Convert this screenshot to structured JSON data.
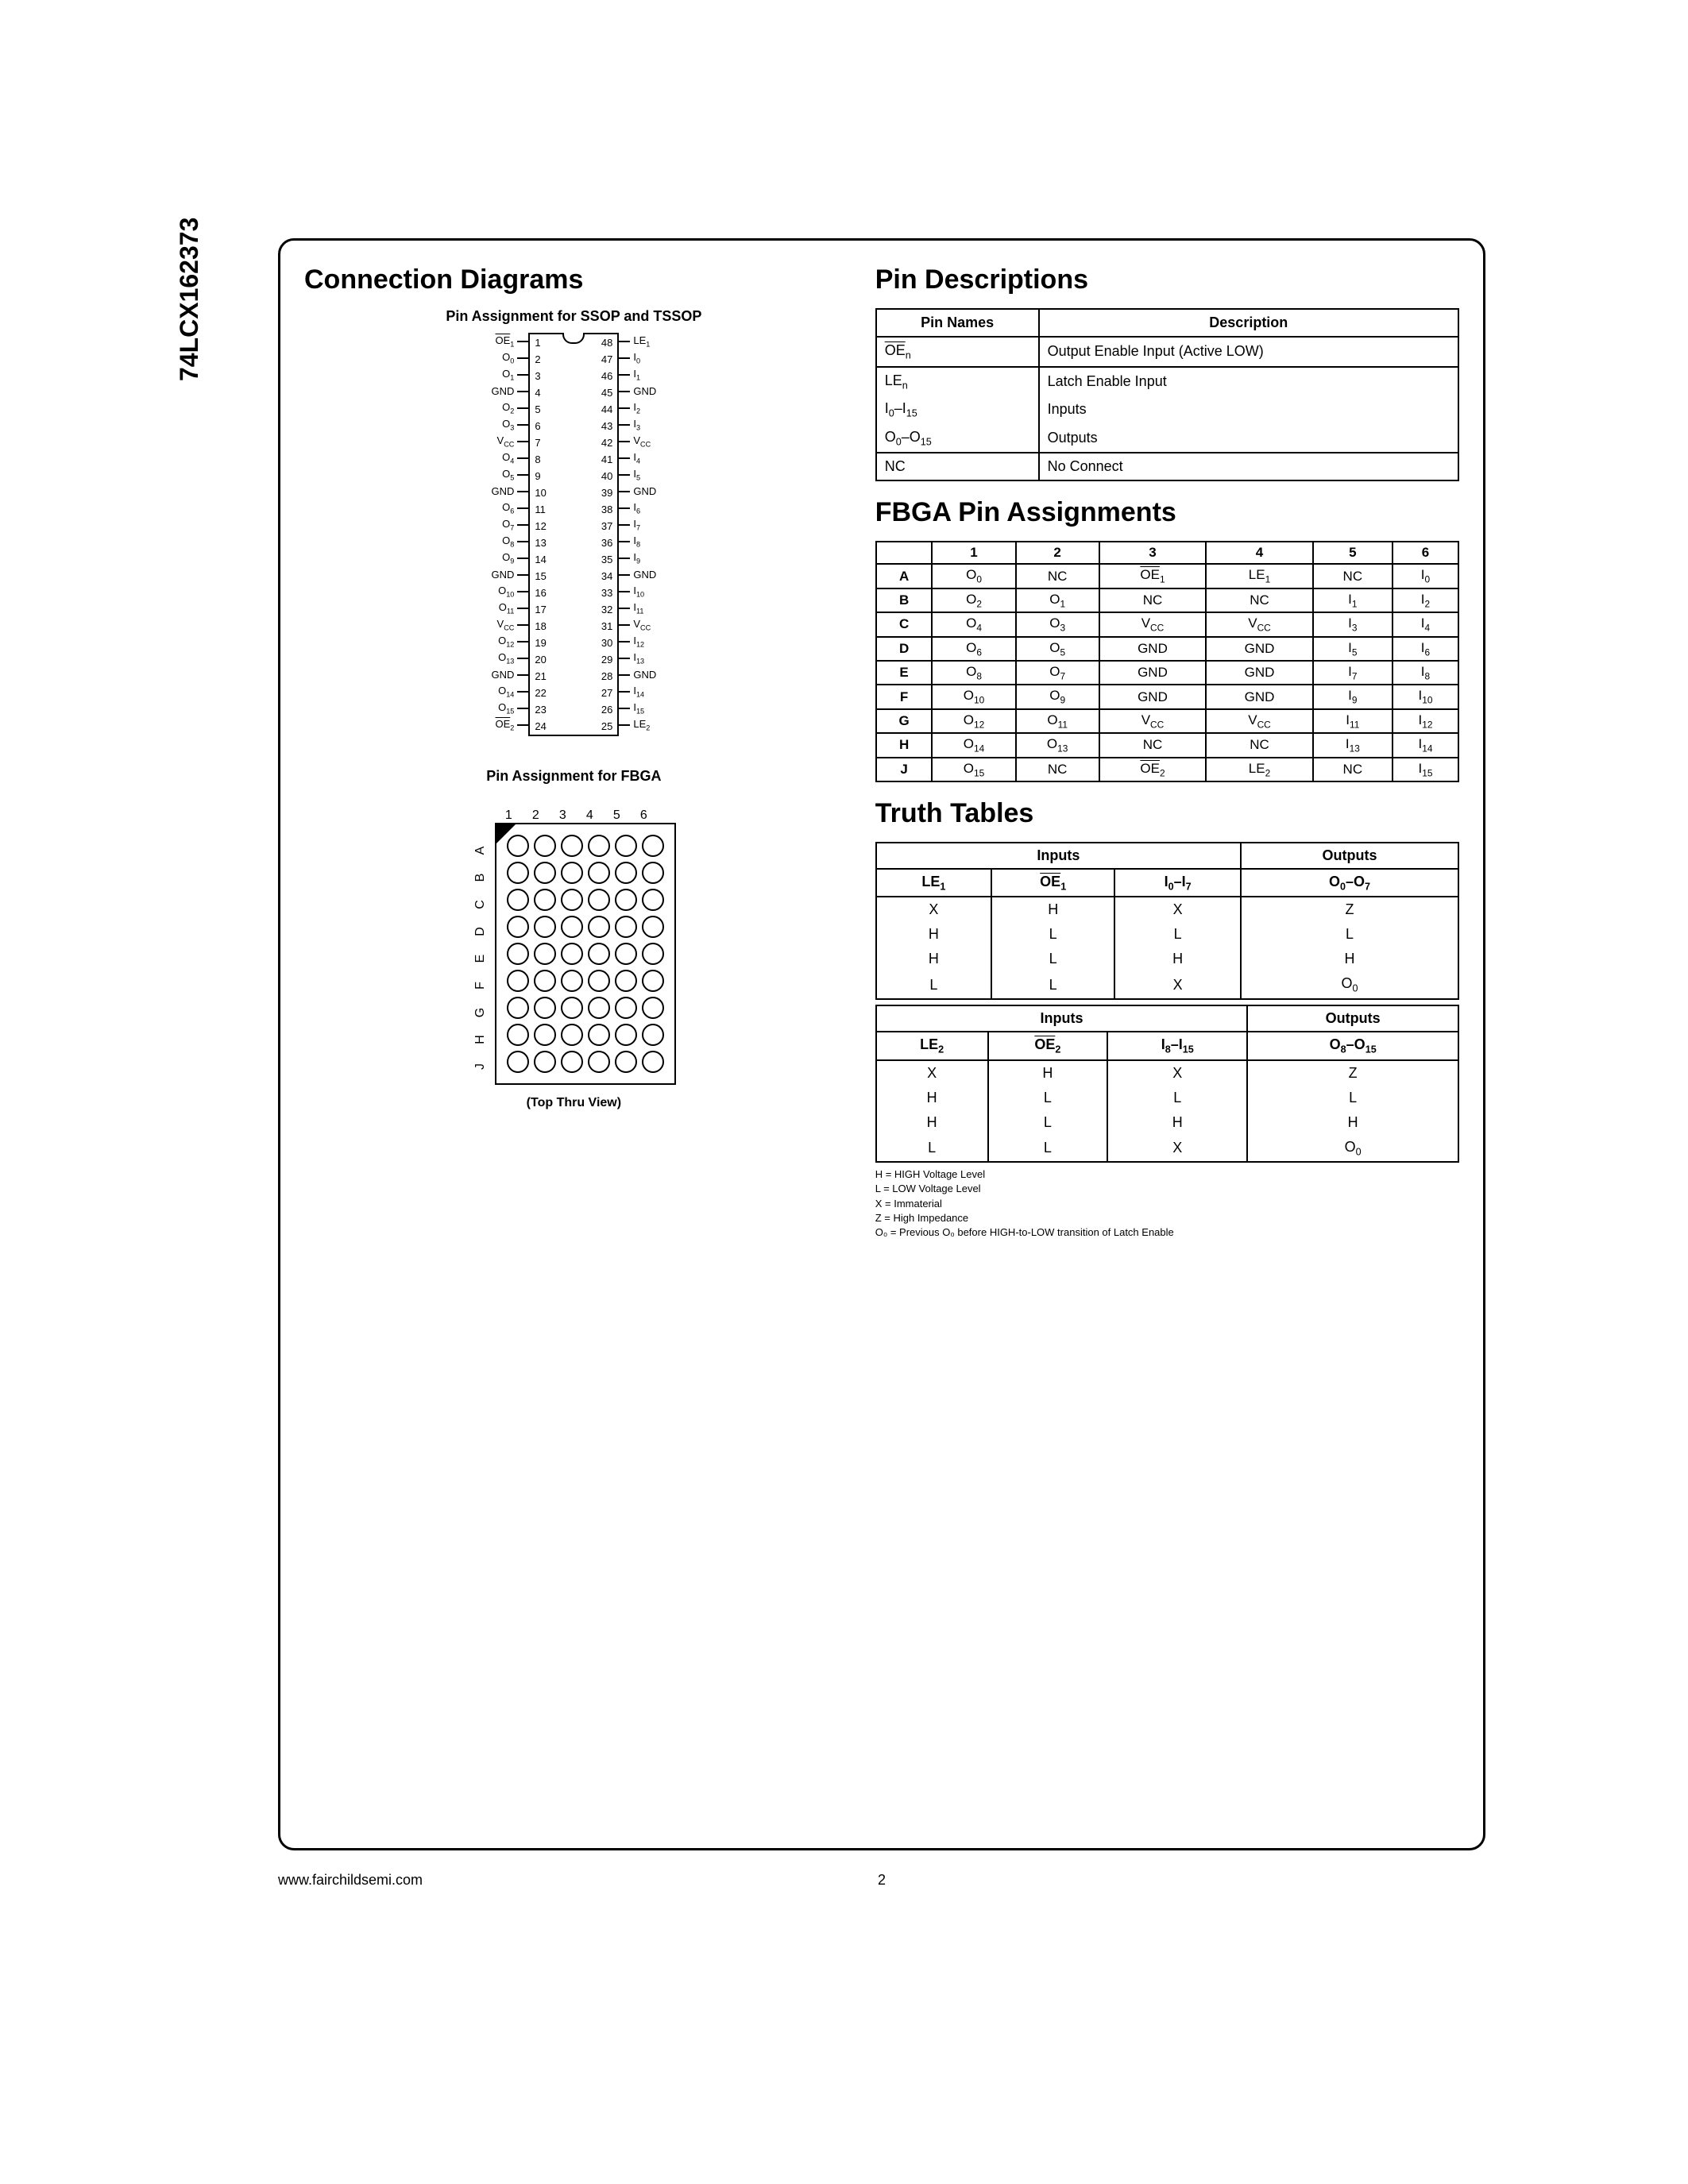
{
  "part_number": "74LCX162373",
  "sections": {
    "connection_diagrams": "Connection Diagrams",
    "pin_descriptions": "Pin Descriptions",
    "fbga_assignments": "FBGA Pin Assignments",
    "truth_tables": "Truth Tables"
  },
  "ssop": {
    "title": "Pin Assignment for SSOP and TSSOP",
    "left_pins": [
      {
        "n": "1",
        "l": "OE",
        "sub": "1",
        "ov": true
      },
      {
        "n": "2",
        "l": "O",
        "sub": "0"
      },
      {
        "n": "3",
        "l": "O",
        "sub": "1"
      },
      {
        "n": "4",
        "l": "GND"
      },
      {
        "n": "5",
        "l": "O",
        "sub": "2"
      },
      {
        "n": "6",
        "l": "O",
        "sub": "3"
      },
      {
        "n": "7",
        "l": "V",
        "sub": "CC"
      },
      {
        "n": "8",
        "l": "O",
        "sub": "4"
      },
      {
        "n": "9",
        "l": "O",
        "sub": "5"
      },
      {
        "n": "10",
        "l": "GND"
      },
      {
        "n": "11",
        "l": "O",
        "sub": "6"
      },
      {
        "n": "12",
        "l": "O",
        "sub": "7"
      },
      {
        "n": "13",
        "l": "O",
        "sub": "8"
      },
      {
        "n": "14",
        "l": "O",
        "sub": "9"
      },
      {
        "n": "15",
        "l": "GND"
      },
      {
        "n": "16",
        "l": "O",
        "sub": "10"
      },
      {
        "n": "17",
        "l": "O",
        "sub": "11"
      },
      {
        "n": "18",
        "l": "V",
        "sub": "CC"
      },
      {
        "n": "19",
        "l": "O",
        "sub": "12"
      },
      {
        "n": "20",
        "l": "O",
        "sub": "13"
      },
      {
        "n": "21",
        "l": "GND"
      },
      {
        "n": "22",
        "l": "O",
        "sub": "14"
      },
      {
        "n": "23",
        "l": "O",
        "sub": "15"
      },
      {
        "n": "24",
        "l": "OE",
        "sub": "2",
        "ov": true
      }
    ],
    "right_pins": [
      {
        "n": "48",
        "l": "LE",
        "sub": "1"
      },
      {
        "n": "47",
        "l": "I",
        "sub": "0"
      },
      {
        "n": "46",
        "l": "I",
        "sub": "1"
      },
      {
        "n": "45",
        "l": "GND"
      },
      {
        "n": "44",
        "l": "I",
        "sub": "2"
      },
      {
        "n": "43",
        "l": "I",
        "sub": "3"
      },
      {
        "n": "42",
        "l": "V",
        "sub": "CC"
      },
      {
        "n": "41",
        "l": "I",
        "sub": "4"
      },
      {
        "n": "40",
        "l": "I",
        "sub": "5"
      },
      {
        "n": "39",
        "l": "GND"
      },
      {
        "n": "38",
        "l": "I",
        "sub": "6"
      },
      {
        "n": "37",
        "l": "I",
        "sub": "7"
      },
      {
        "n": "36",
        "l": "I",
        "sub": "8"
      },
      {
        "n": "35",
        "l": "I",
        "sub": "9"
      },
      {
        "n": "34",
        "l": "GND"
      },
      {
        "n": "33",
        "l": "I",
        "sub": "10"
      },
      {
        "n": "32",
        "l": "I",
        "sub": "11"
      },
      {
        "n": "31",
        "l": "V",
        "sub": "CC"
      },
      {
        "n": "30",
        "l": "I",
        "sub": "12"
      },
      {
        "n": "29",
        "l": "I",
        "sub": "13"
      },
      {
        "n": "28",
        "l": "GND"
      },
      {
        "n": "27",
        "l": "I",
        "sub": "14"
      },
      {
        "n": "26",
        "l": "I",
        "sub": "15"
      },
      {
        "n": "25",
        "l": "LE",
        "sub": "2"
      }
    ]
  },
  "fbga_diagram": {
    "title": "Pin Assignment for FBGA",
    "caption": "(Top Thru View)",
    "cols": [
      "1",
      "2",
      "3",
      "4",
      "5",
      "6"
    ],
    "rows": [
      "A",
      "B",
      "C",
      "D",
      "E",
      "F",
      "G",
      "H",
      "J"
    ]
  },
  "pin_desc": {
    "head": [
      "Pin Names",
      "Description"
    ],
    "rows": [
      [
        {
          "t": "OE",
          "sub": "n",
          "ov": true
        },
        {
          "t": "Output Enable Input (Active LOW)"
        }
      ],
      [
        {
          "t": "LE",
          "sub": "n"
        },
        {
          "t": "Latch Enable Input"
        }
      ],
      [
        {
          "t": "I",
          "sub": "0",
          "suffix": "–I",
          "sub2": "15"
        },
        {
          "t": "Inputs"
        }
      ],
      [
        {
          "t": "O",
          "sub": "0",
          "suffix": "–O",
          "sub2": "15"
        },
        {
          "t": "Outputs"
        }
      ],
      [
        {
          "t": "NC"
        },
        {
          "t": "No Connect"
        }
      ]
    ]
  },
  "fbga_table": {
    "head": [
      "",
      "1",
      "2",
      "3",
      "4",
      "5",
      "6"
    ],
    "rows": [
      [
        "A",
        [
          {
            "t": "O",
            "s": "0"
          },
          {
            "t": "NC"
          },
          {
            "t": "OE",
            "s": "1",
            "ov": true
          },
          {
            "t": "LE",
            "s": "1"
          },
          {
            "t": "NC"
          },
          {
            "t": "I",
            "s": "0"
          }
        ]
      ],
      [
        "B",
        [
          {
            "t": "O",
            "s": "2"
          },
          {
            "t": "O",
            "s": "1"
          },
          {
            "t": "NC"
          },
          {
            "t": "NC"
          },
          {
            "t": "I",
            "s": "1"
          },
          {
            "t": "I",
            "s": "2"
          }
        ]
      ],
      [
        "C",
        [
          {
            "t": "O",
            "s": "4"
          },
          {
            "t": "O",
            "s": "3"
          },
          {
            "t": "V",
            "s": "CC"
          },
          {
            "t": "V",
            "s": "CC"
          },
          {
            "t": "I",
            "s": "3"
          },
          {
            "t": "I",
            "s": "4"
          }
        ]
      ],
      [
        "D",
        [
          {
            "t": "O",
            "s": "6"
          },
          {
            "t": "O",
            "s": "5"
          },
          {
            "t": "GND"
          },
          {
            "t": "GND"
          },
          {
            "t": "I",
            "s": "5"
          },
          {
            "t": "I",
            "s": "6"
          }
        ]
      ],
      [
        "E",
        [
          {
            "t": "O",
            "s": "8"
          },
          {
            "t": "O",
            "s": "7"
          },
          {
            "t": "GND"
          },
          {
            "t": "GND"
          },
          {
            "t": "I",
            "s": "7"
          },
          {
            "t": "I",
            "s": "8"
          }
        ]
      ],
      [
        "F",
        [
          {
            "t": "O",
            "s": "10"
          },
          {
            "t": "O",
            "s": "9"
          },
          {
            "t": "GND"
          },
          {
            "t": "GND"
          },
          {
            "t": "I",
            "s": "9"
          },
          {
            "t": "I",
            "s": "10"
          }
        ]
      ],
      [
        "G",
        [
          {
            "t": "O",
            "s": "12"
          },
          {
            "t": "O",
            "s": "11"
          },
          {
            "t": "V",
            "s": "CC"
          },
          {
            "t": "V",
            "s": "CC"
          },
          {
            "t": "I",
            "s": "11"
          },
          {
            "t": "I",
            "s": "12"
          }
        ]
      ],
      [
        "H",
        [
          {
            "t": "O",
            "s": "14"
          },
          {
            "t": "O",
            "s": "13"
          },
          {
            "t": "NC"
          },
          {
            "t": "NC"
          },
          {
            "t": "I",
            "s": "13"
          },
          {
            "t": "I",
            "s": "14"
          }
        ]
      ],
      [
        "J",
        [
          {
            "t": "O",
            "s": "15"
          },
          {
            "t": "NC"
          },
          {
            "t": "OE",
            "s": "2",
            "ov": true
          },
          {
            "t": "LE",
            "s": "2"
          },
          {
            "t": "NC"
          },
          {
            "t": "I",
            "s": "15"
          }
        ]
      ]
    ]
  },
  "truth1": {
    "group_head": [
      "Inputs",
      "Outputs"
    ],
    "head": [
      {
        "t": "LE",
        "s": "1"
      },
      {
        "t": "OE",
        "s": "1",
        "ov": true
      },
      {
        "t": "I",
        "s": "0",
        "suffix": "–I",
        "s2": "7"
      },
      {
        "t": "O",
        "s": "0",
        "suffix": "–O",
        "s2": "7"
      }
    ],
    "rows": [
      [
        "X",
        "H",
        "X",
        "Z"
      ],
      [
        "H",
        "L",
        "L",
        "L"
      ],
      [
        "H",
        "L",
        "H",
        "H"
      ],
      [
        "L",
        "L",
        "X",
        {
          "t": "O",
          "s": "0"
        }
      ]
    ]
  },
  "truth2": {
    "group_head": [
      "Inputs",
      "Outputs"
    ],
    "head": [
      {
        "t": "LE",
        "s": "2"
      },
      {
        "t": "OE",
        "s": "2",
        "ov": true
      },
      {
        "t": "I",
        "s": "8",
        "suffix": "–I",
        "s2": "15"
      },
      {
        "t": "O",
        "s": "8",
        "suffix": "–O",
        "s2": "15"
      }
    ],
    "rows": [
      [
        "X",
        "H",
        "X",
        "Z"
      ],
      [
        "H",
        "L",
        "L",
        "L"
      ],
      [
        "H",
        "L",
        "H",
        "H"
      ],
      [
        "L",
        "L",
        "X",
        {
          "t": "O",
          "s": "0"
        }
      ]
    ]
  },
  "notes": [
    "H = HIGH Voltage Level",
    "L = LOW Voltage Level",
    "X = Immaterial",
    "Z = High Impedance",
    "O₀ = Previous O₀ before HIGH-to-LOW transition of Latch Enable"
  ],
  "footer": {
    "url": "www.fairchildsemi.com",
    "page": "2"
  }
}
